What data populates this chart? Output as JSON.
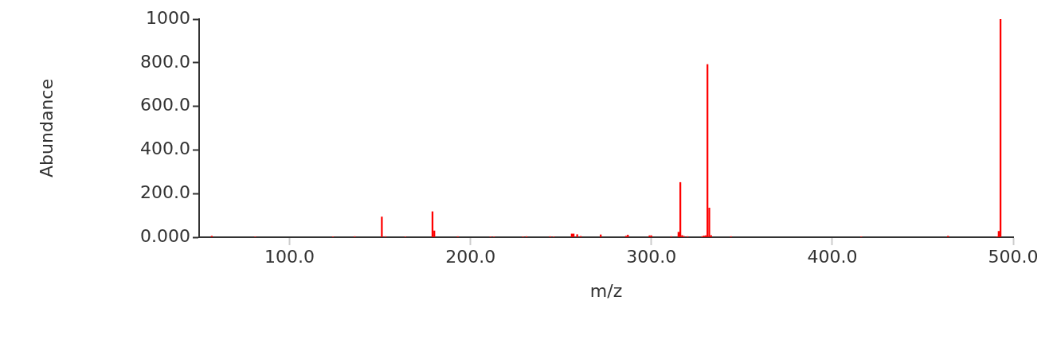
{
  "chart_data": {
    "type": "bar",
    "xlabel": "m/z",
    "ylabel": "Abundance",
    "x": [
      57,
      81,
      124,
      136,
      151,
      153,
      164,
      179,
      180,
      193,
      211,
      213,
      229,
      231,
      244,
      246,
      256,
      257,
      259,
      261,
      272,
      286,
      287,
      299,
      300,
      311,
      315,
      316,
      317,
      318,
      320,
      328,
      329,
      330,
      331,
      332,
      333,
      344,
      416,
      464,
      491,
      492,
      493
    ],
    "values": [
      5,
      2,
      2,
      3,
      93,
      3,
      2,
      117,
      29,
      3,
      2,
      2,
      2,
      3,
      3,
      2,
      15,
      15,
      12,
      4,
      11,
      5,
      10,
      7,
      7,
      3,
      23,
      251,
      8,
      4,
      3,
      3,
      6,
      7,
      792,
      134,
      8,
      3,
      2,
      5,
      2,
      27,
      1000
    ],
    "color": "#ff0000",
    "xlim": [
      50,
      500
    ],
    "xticks": [
      {
        "value": 100,
        "label": "100.0"
      },
      {
        "value": 200,
        "label": "200.0"
      },
      {
        "value": 300,
        "label": "300.0"
      },
      {
        "value": 400,
        "label": "400.0"
      },
      {
        "value": 500,
        "label": "500.0"
      }
    ],
    "ylim": [
      0,
      1000
    ],
    "yticks": [
      {
        "value": 0,
        "label": "0.000"
      },
      {
        "value": 200,
        "label": "200.0"
      },
      {
        "value": 400,
        "label": "400.0"
      },
      {
        "value": 600,
        "label": "600.0"
      },
      {
        "value": 800,
        "label": "800.0"
      },
      1000
    ],
    "grid": false,
    "legend": false
  }
}
